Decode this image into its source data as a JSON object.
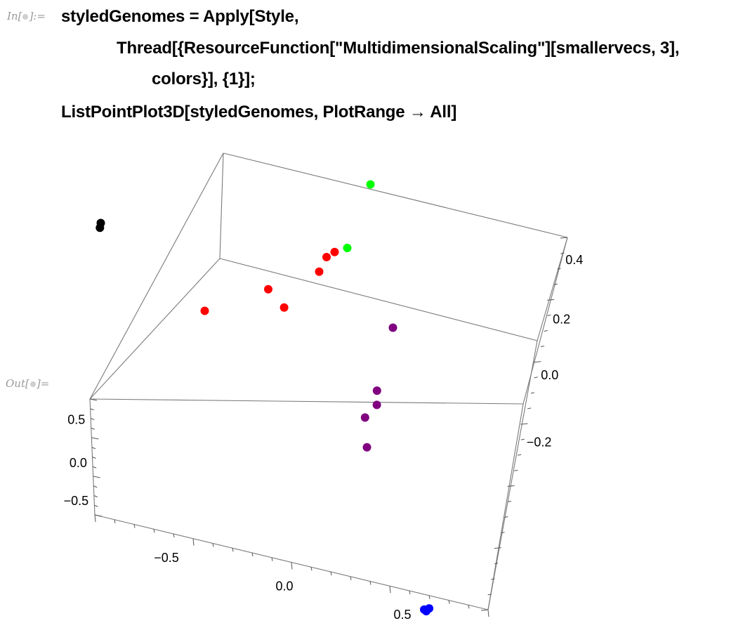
{
  "input_label": {
    "prefix": "In[",
    "suffix": "]:="
  },
  "output_label": {
    "prefix": "Out[",
    "suffix": "]="
  },
  "code": {
    "line1": "styledGenomes = Apply[Style,",
    "line2": "Thread[{ResourceFunction[\"MultidimensionalScaling\"][smallervecs, 3],",
    "line3": "colors}], {1}];",
    "line4": "ListPointPlot3D[styledGenomes, PlotRange → All]"
  },
  "chart_data": {
    "type": "scatter",
    "projection": "3d",
    "title": "",
    "x_ticks": [
      "−0.5",
      "0.0",
      "0.5"
    ],
    "y_ticks": [
      "0.5",
      "0.0",
      "−0.5"
    ],
    "z_ticks": [
      "0.4",
      "0.2",
      "0.0",
      "−0.2"
    ],
    "series": [
      {
        "color": "#000000",
        "points": [
          [
            -0.95,
            0.3,
            0.05
          ],
          [
            -0.95,
            0.28,
            0.04
          ]
        ]
      },
      {
        "color": "#0000ff",
        "points": [
          [
            0.7,
            -0.5,
            -0.35
          ],
          [
            0.71,
            -0.5,
            -0.34
          ],
          [
            0.69,
            -0.49,
            -0.35
          ]
        ]
      },
      {
        "color": "#00ff00",
        "points": [
          [
            0.15,
            0.6,
            0.45
          ],
          [
            0.1,
            0.35,
            0.3
          ]
        ]
      },
      {
        "color": "#ff0000",
        "points": [
          [
            0.05,
            0.3,
            0.28
          ],
          [
            0.02,
            0.28,
            0.26
          ],
          [
            0.0,
            0.25,
            0.22
          ],
          [
            -0.2,
            0.2,
            0.12
          ],
          [
            -0.12,
            0.18,
            0.1
          ],
          [
            -0.45,
            0.1,
            0.0
          ]
        ]
      },
      {
        "color": "#800080",
        "points": [
          [
            0.35,
            0.1,
            0.2
          ],
          [
            0.33,
            -0.05,
            0.05
          ],
          [
            0.34,
            -0.08,
            0.02
          ],
          [
            0.3,
            -0.12,
            -0.02
          ],
          [
            0.33,
            -0.18,
            -0.08
          ]
        ]
      }
    ]
  }
}
